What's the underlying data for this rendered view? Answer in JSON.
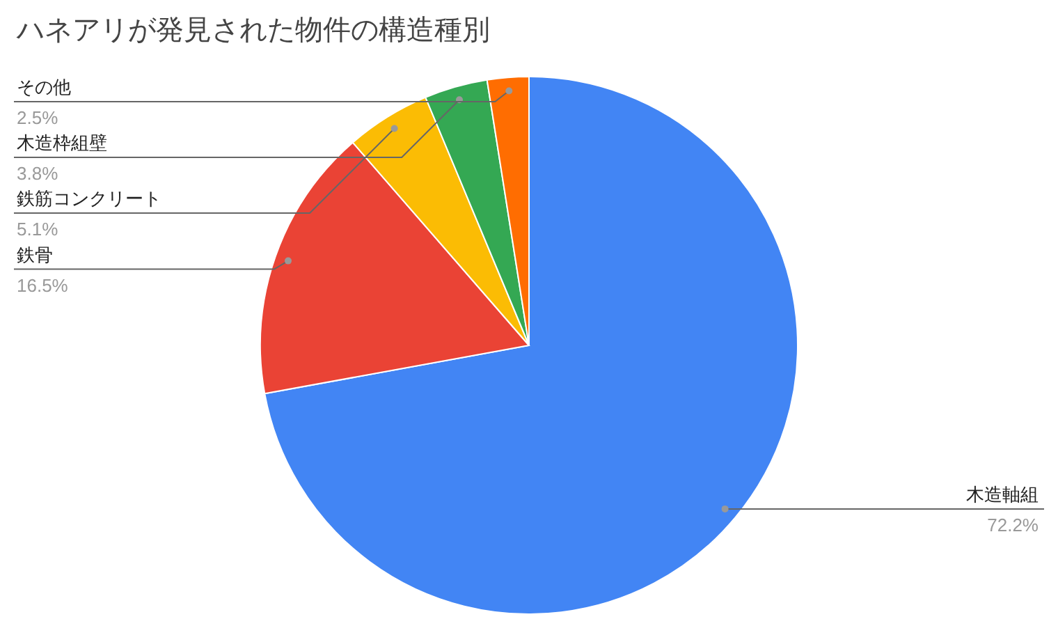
{
  "chart_data": {
    "type": "pie",
    "title": "ハネアリが発見された物件の構造種別",
    "categories": [
      "木造軸組",
      "鉄骨",
      "鉄筋コンクリート",
      "木造枠組壁",
      "その他"
    ],
    "values": [
      72.2,
      16.5,
      5.1,
      3.8,
      2.5
    ],
    "value_labels": [
      "72.2%",
      "16.5%",
      "5.1%",
      "3.8%",
      "2.5%"
    ],
    "colors": [
      "#4285f4",
      "#ea4335",
      "#fbbc04",
      "#34a853",
      "#ff6d01"
    ],
    "legend": false
  }
}
